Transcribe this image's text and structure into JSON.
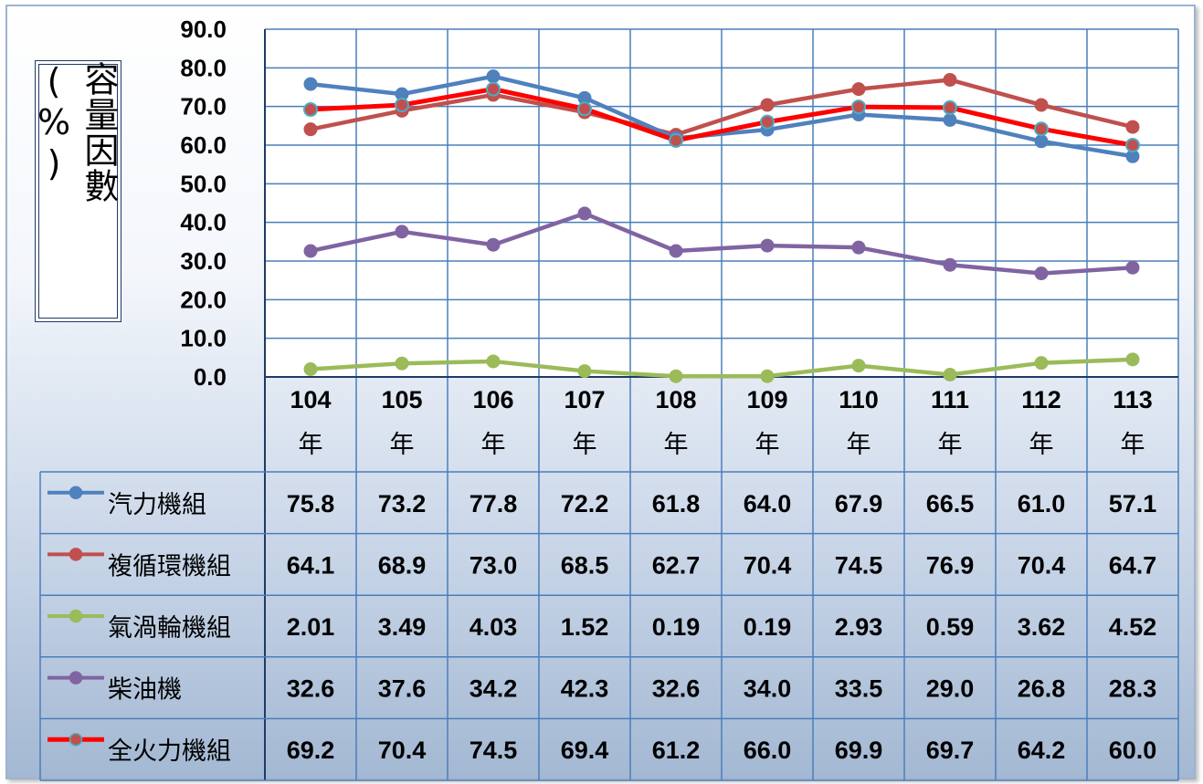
{
  "chart_data": {
    "type": "line",
    "ylabel": "容量因數(%)",
    "ylim": [
      0,
      90
    ],
    "yticks": [
      "0.0",
      "10.0",
      "20.0",
      "30.0",
      "40.0",
      "50.0",
      "60.0",
      "70.0",
      "80.0",
      "90.0"
    ],
    "grid": true,
    "categories": [
      "104",
      "105",
      "106",
      "107",
      "108",
      "109",
      "110",
      "111",
      "112",
      "113"
    ],
    "category_suffix": "年",
    "series": [
      {
        "name": "汽力機組",
        "color": "#4f81bd",
        "values": [
          75.8,
          73.2,
          77.8,
          72.2,
          61.8,
          64.0,
          67.9,
          66.5,
          61.0,
          57.1
        ],
        "labels": [
          "75.8",
          "73.2",
          "77.8",
          "72.2",
          "61.8",
          "64.0",
          "67.9",
          "66.5",
          "61.0",
          "57.1"
        ]
      },
      {
        "name": "複循環機組",
        "color": "#c0504d",
        "values": [
          64.1,
          68.9,
          73.0,
          68.5,
          62.7,
          70.4,
          74.5,
          76.9,
          70.4,
          64.7
        ],
        "labels": [
          "64.1",
          "68.9",
          "73.0",
          "68.5",
          "62.7",
          "70.4",
          "74.5",
          "76.9",
          "70.4",
          "64.7"
        ]
      },
      {
        "name": "氣渦輪機組",
        "color": "#9bbb59",
        "values": [
          2.01,
          3.49,
          4.03,
          1.52,
          0.19,
          0.19,
          2.93,
          0.59,
          3.62,
          4.52
        ],
        "labels": [
          "2.01",
          "3.49",
          "4.03",
          "1.52",
          "0.19",
          "0.19",
          "2.93",
          "0.59",
          "3.62",
          "4.52"
        ]
      },
      {
        "name": "柴油機",
        "color": "#8064a2",
        "values": [
          32.6,
          37.6,
          34.2,
          42.3,
          32.6,
          34.0,
          33.5,
          29.0,
          26.8,
          28.3
        ],
        "labels": [
          "32.6",
          "37.6",
          "34.2",
          "42.3",
          "32.6",
          "34.0",
          "33.5",
          "29.0",
          "26.8",
          "28.3"
        ]
      },
      {
        "name": "全火力機組",
        "color": "#ff0000",
        "marker_color": "#c0504d",
        "marker_stroke": "#4bacc6",
        "values": [
          69.2,
          70.4,
          74.5,
          69.4,
          61.2,
          66.0,
          69.9,
          69.7,
          64.2,
          60.0
        ],
        "labels": [
          "69.2",
          "70.4",
          "74.5",
          "69.4",
          "61.2",
          "66.0",
          "69.9",
          "69.7",
          "64.2",
          "60.0"
        ]
      }
    ]
  }
}
